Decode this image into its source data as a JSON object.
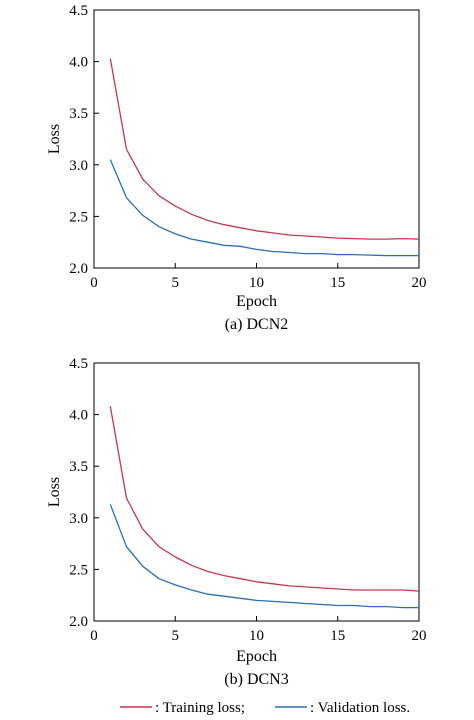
{
  "chart_data": [
    {
      "type": "line",
      "caption": "(a) DCN2",
      "xlabel": "Epoch",
      "ylabel": "Loss",
      "xlim": [
        0,
        20
      ],
      "ylim": [
        2.0,
        4.5
      ],
      "xticks": [
        0,
        5,
        10,
        15,
        20
      ],
      "yticks": [
        2.0,
        2.5,
        3.0,
        3.5,
        4.0,
        4.5
      ],
      "grid": false,
      "x": [
        1,
        2,
        3,
        4,
        5,
        6,
        7,
        8,
        9,
        10,
        11,
        12,
        13,
        14,
        15,
        16,
        17,
        18,
        19,
        20
      ],
      "series": [
        {
          "name": "Training loss",
          "color": "#c8374a",
          "values": [
            4.03,
            3.15,
            2.86,
            2.7,
            2.6,
            2.52,
            2.46,
            2.42,
            2.39,
            2.36,
            2.34,
            2.32,
            2.31,
            2.3,
            2.29,
            2.285,
            2.28,
            2.28,
            2.285,
            2.28
          ]
        },
        {
          "name": "Validation loss",
          "color": "#2a6fb5",
          "values": [
            3.05,
            2.68,
            2.51,
            2.4,
            2.33,
            2.28,
            2.25,
            2.22,
            2.21,
            2.18,
            2.16,
            2.15,
            2.14,
            2.14,
            2.13,
            2.13,
            2.125,
            2.12,
            2.12,
            2.12
          ]
        }
      ]
    },
    {
      "type": "line",
      "caption": "(b) DCN3",
      "xlabel": "Epoch",
      "ylabel": "Loss",
      "xlim": [
        0,
        20
      ],
      "ylim": [
        2.0,
        4.5
      ],
      "xticks": [
        0,
        5,
        10,
        15,
        20
      ],
      "yticks": [
        2.0,
        2.5,
        3.0,
        3.5,
        4.0,
        4.5
      ],
      "grid": false,
      "x": [
        1,
        2,
        3,
        4,
        5,
        6,
        7,
        8,
        9,
        10,
        11,
        12,
        13,
        14,
        15,
        16,
        17,
        18,
        19,
        20
      ],
      "series": [
        {
          "name": "Training loss",
          "color": "#c8374a",
          "values": [
            4.08,
            3.19,
            2.89,
            2.72,
            2.62,
            2.54,
            2.48,
            2.44,
            2.41,
            2.38,
            2.36,
            2.34,
            2.33,
            2.32,
            2.31,
            2.3,
            2.3,
            2.3,
            2.3,
            2.29
          ]
        },
        {
          "name": "Validation loss",
          "color": "#2a6fb5",
          "values": [
            3.13,
            2.72,
            2.53,
            2.41,
            2.35,
            2.3,
            2.26,
            2.24,
            2.22,
            2.2,
            2.19,
            2.18,
            2.17,
            2.16,
            2.15,
            2.15,
            2.14,
            2.14,
            2.13,
            2.13
          ]
        }
      ]
    }
  ],
  "legend": [
    {
      "text": ": Training loss;",
      "color": "#c8374a"
    },
    {
      "text": ": Validation loss.",
      "color": "#2a6fb5"
    }
  ]
}
